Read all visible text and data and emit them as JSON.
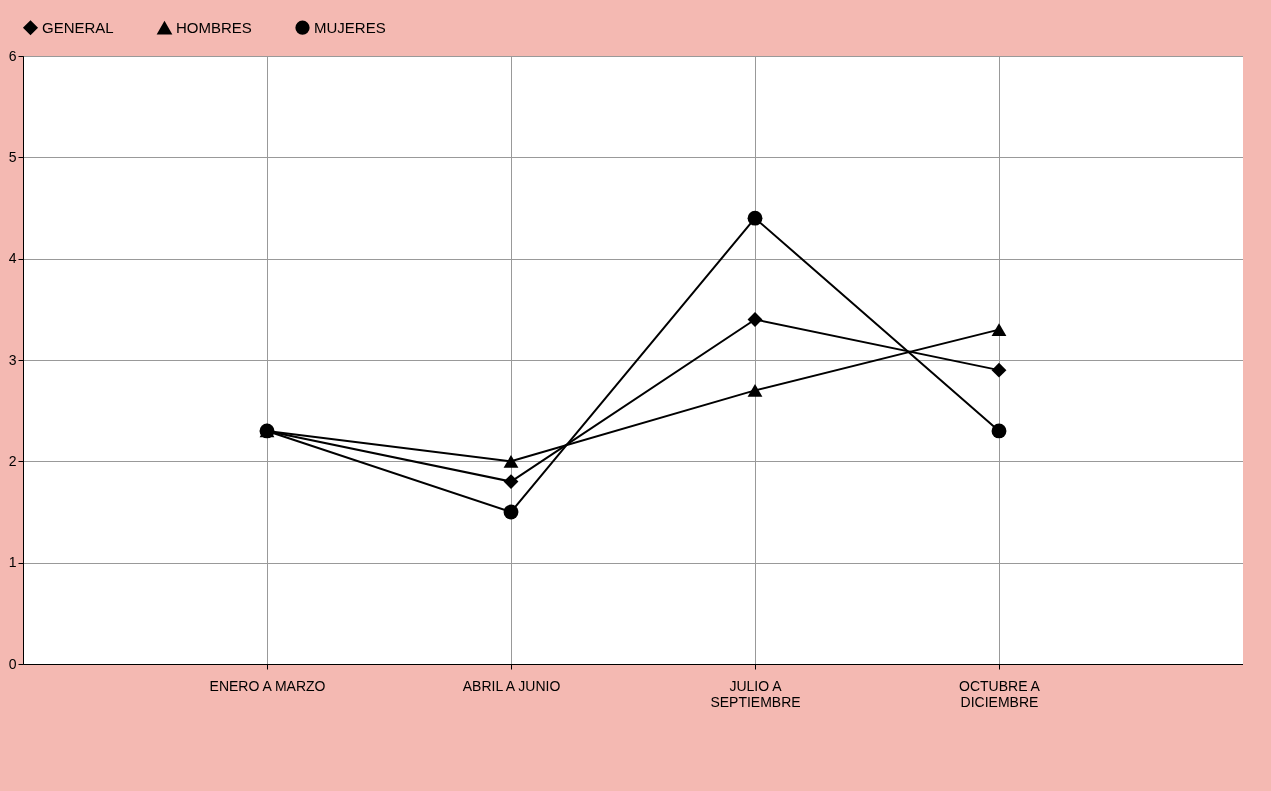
{
  "chart_data": {
    "type": "line",
    "categories": [
      "ENERO A MARZO",
      "ABRIL A JUNIO",
      "JULIO A SEPTIEMBRE",
      "OCTUBRE A DICIEMBRE"
    ],
    "series": [
      {
        "name": "GENERAL",
        "color": "#000000",
        "marker": "diamond",
        "values": [
          2.3,
          1.8,
          3.4,
          2.9
        ]
      },
      {
        "name": "HOMBRES",
        "color": "#000000",
        "marker": "triangle",
        "values": [
          2.3,
          2.0,
          2.7,
          3.3
        ]
      },
      {
        "name": "MUJERES",
        "color": "#000000",
        "marker": "circle",
        "values": [
          2.3,
          1.5,
          4.4,
          2.3
        ]
      }
    ],
    "ylim": [
      0,
      6
    ],
    "yticks": [
      0,
      1,
      2,
      3,
      4,
      5,
      6
    ],
    "grid": true,
    "legend": "top",
    "line_style": "solid"
  }
}
